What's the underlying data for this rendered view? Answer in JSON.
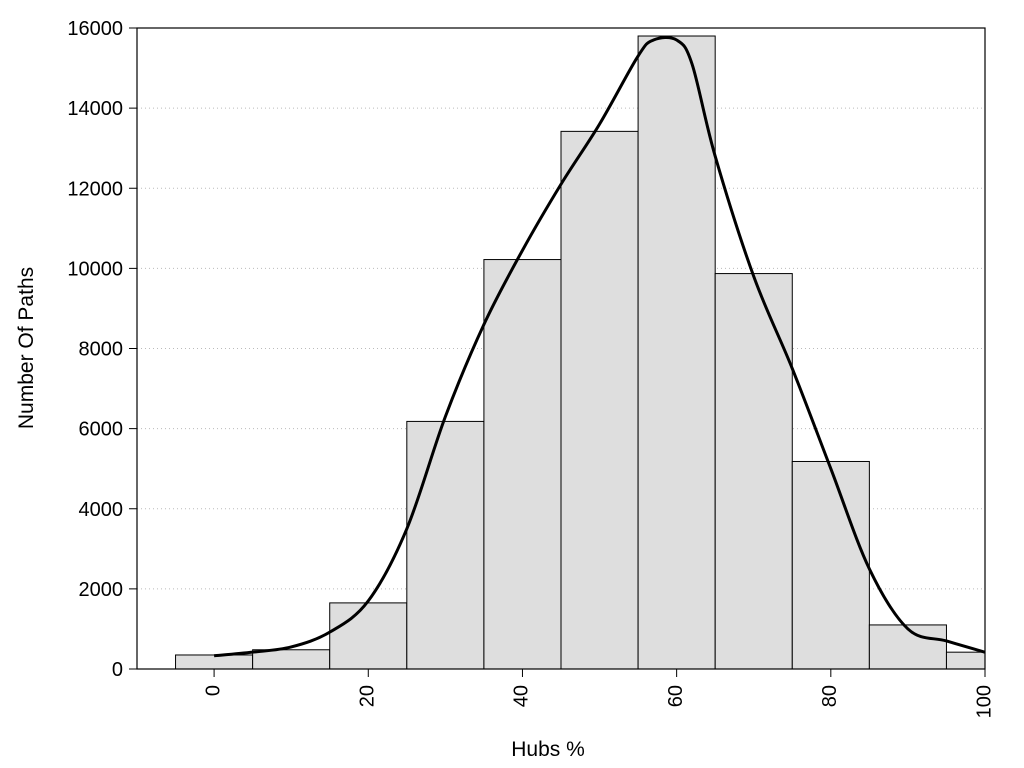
{
  "chart_data": {
    "type": "histogram",
    "title": "",
    "xlabel": "Hubs %",
    "ylabel": "Number Of Paths",
    "xlim": [
      -10,
      100
    ],
    "ylim": [
      0,
      16000
    ],
    "xticks": [
      "0",
      "20",
      "40",
      "60",
      "80",
      "100"
    ],
    "yticks": [
      "0",
      "2000",
      "4000",
      "6000",
      "8000",
      "10000",
      "12000",
      "14000",
      "16000"
    ],
    "grid": "horizontal-dotted",
    "bin_width": 10,
    "bins": [
      {
        "center": 0,
        "count": 350
      },
      {
        "center": 10,
        "count": 480
      },
      {
        "center": 20,
        "count": 1650
      },
      {
        "center": 30,
        "count": 6180
      },
      {
        "center": 40,
        "count": 10220
      },
      {
        "center": 50,
        "count": 13420
      },
      {
        "center": 60,
        "count": 15800
      },
      {
        "center": 70,
        "count": 9870
      },
      {
        "center": 80,
        "count": 5180
      },
      {
        "center": 90,
        "count": 1100
      },
      {
        "center": 100,
        "count": 420
      }
    ],
    "density_curve": {
      "x": [
        0,
        5,
        10,
        15,
        20,
        25,
        30,
        35,
        40,
        45,
        50,
        55,
        57,
        60,
        62,
        65,
        70,
        75,
        80,
        85,
        90,
        95,
        100
      ],
      "y": [
        330,
        420,
        550,
        920,
        1700,
        3500,
        6300,
        8600,
        10450,
        12100,
        13600,
        15300,
        15700,
        15700,
        15100,
        12800,
        9800,
        7500,
        5000,
        2500,
        1000,
        700,
        420
      ]
    },
    "colors": {
      "bar_fill": "#dedede",
      "bar_stroke": "#000000",
      "curve": "#000000",
      "grid": "#bbbbbb"
    }
  }
}
